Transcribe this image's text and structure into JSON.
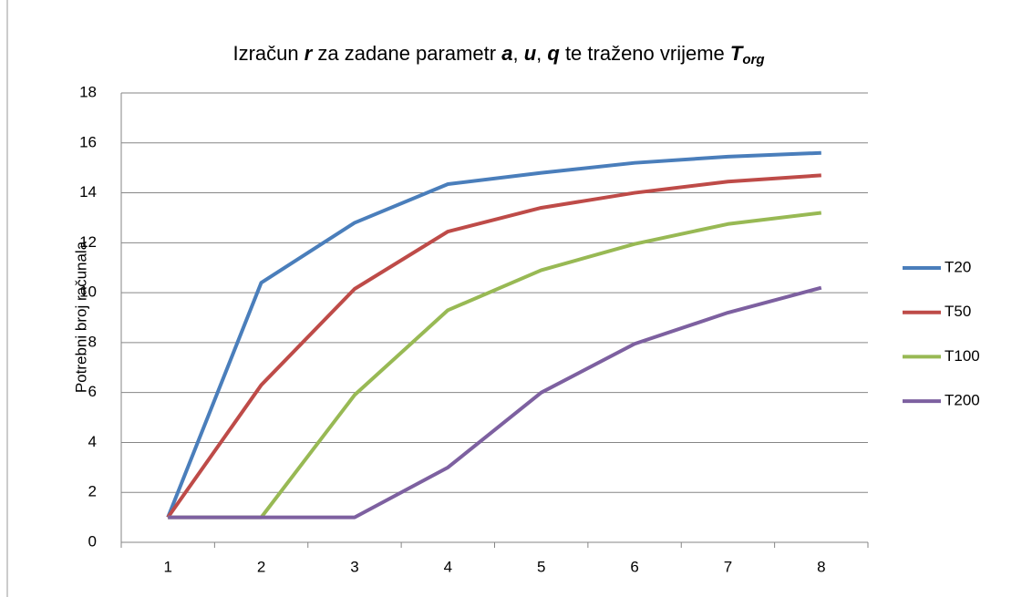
{
  "chart_data": {
    "type": "line",
    "title": [
      "Izračun ",
      "r",
      " za zadane parametr ",
      "a",
      ", ",
      "u",
      ", ",
      "q",
      " te traženo vrijeme ",
      "T",
      "org"
    ],
    "y_label": "Potrebni broj računala",
    "categories": [
      1,
      2,
      3,
      4,
      5,
      6,
      7,
      8
    ],
    "series": [
      {
        "name": "T20",
        "color": "#4a7ebb",
        "values": [
          1,
          10.4,
          12.8,
          14.35,
          14.8,
          15.2,
          15.45,
          15.6
        ]
      },
      {
        "name": "T50",
        "color": "#be4b48",
        "values": [
          1,
          6.3,
          10.15,
          12.45,
          13.4,
          14.0,
          14.45,
          14.7
        ]
      },
      {
        "name": "T100",
        "color": "#98b954",
        "values": [
          1,
          1,
          5.9,
          9.3,
          10.9,
          11.95,
          12.75,
          13.2
        ]
      },
      {
        "name": "T200",
        "color": "#7d60a0",
        "values": [
          1,
          1,
          1,
          3,
          6,
          7.95,
          9.2,
          10.2
        ]
      }
    ],
    "ylim": [
      0,
      18
    ],
    "yticks": [
      0,
      2,
      4,
      6,
      8,
      10,
      12,
      14,
      16,
      18
    ],
    "grid": true,
    "legend": "right"
  }
}
